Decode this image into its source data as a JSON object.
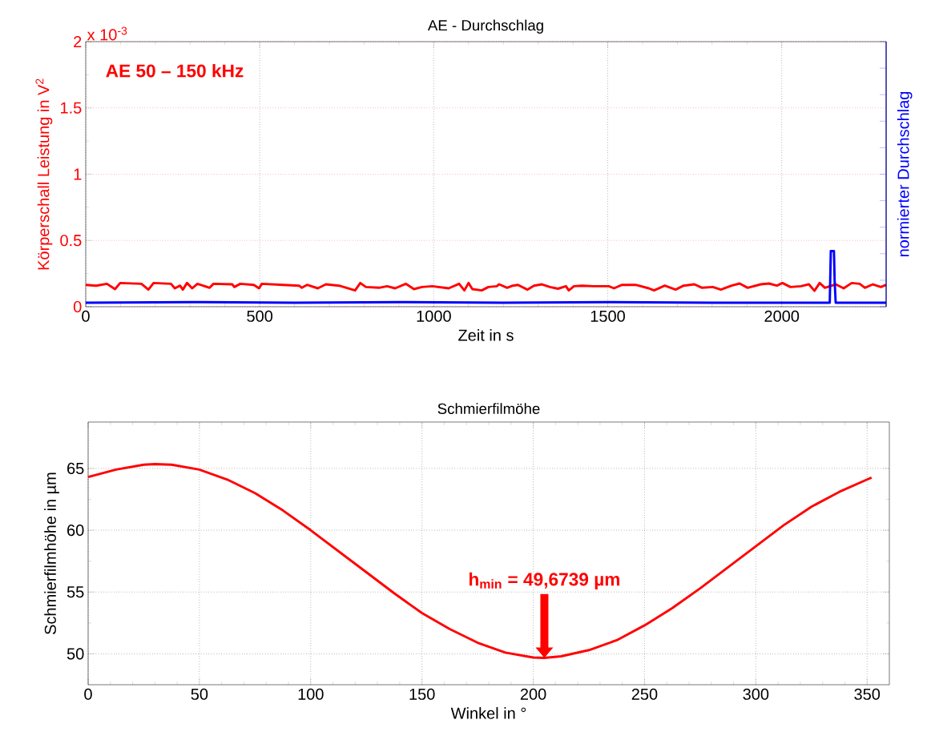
{
  "chart_data": [
    {
      "type": "line",
      "title": "AE - Durchschlag",
      "xlabel": "Zeit in s",
      "ylabel": "Körperschall Leistung in V$^{2}$",
      "y2label": "normierter Durchschlag",
      "xlim": [
        0,
        2300
      ],
      "xticks": [
        0,
        500,
        1000,
        1500,
        2000
      ],
      "ylim": [
        0,
        2
      ],
      "yticks": [
        0,
        0.5,
        1,
        1.5,
        2
      ],
      "grid": true,
      "annotations": [
        "AE 50 – 150 kHz",
        "x 10$^{-3}$"
      ],
      "series": [
        {
          "color": "#ff0000",
          "x": [
            0,
            30,
            61,
            84,
            99,
            160,
            180,
            195,
            245,
            256,
            271,
            279,
            291,
            306,
            321,
            356,
            367,
            421,
            427,
            444,
            483,
            498,
            506,
            567,
            613,
            621,
            636,
            667,
            690,
            728,
            774,
            789,
            805,
            843,
            866,
            889,
            920,
            943,
            966,
            996,
            1043,
            1073,
            1088,
            1100,
            1111,
            1138,
            1157,
            1181,
            1188,
            1211,
            1227,
            1242,
            1269,
            1288,
            1311,
            1334,
            1357,
            1380,
            1388,
            1403,
            1426,
            1457,
            1503,
            1518,
            1541,
            1580,
            1618,
            1633,
            1664,
            1695,
            1718,
            1749,
            1771,
            1802,
            1825,
            1856,
            1879,
            1902,
            1940,
            1963,
            1986,
            2002,
            2025,
            2055,
            2078,
            2094,
            2109,
            2124,
            2155,
            2178,
            2201,
            2224,
            2239,
            2262,
            2285,
            2300
          ],
          "values": [
            0.165,
            0.159,
            0.173,
            0.133,
            0.179,
            0.173,
            0.129,
            0.179,
            0.173,
            0.139,
            0.159,
            0.129,
            0.179,
            0.139,
            0.173,
            0.143,
            0.173,
            0.169,
            0.149,
            0.173,
            0.165,
            0.139,
            0.173,
            0.165,
            0.159,
            0.143,
            0.165,
            0.139,
            0.169,
            0.159,
            0.123,
            0.179,
            0.149,
            0.143,
            0.155,
            0.139,
            0.173,
            0.133,
            0.149,
            0.155,
            0.139,
            0.173,
            0.123,
            0.179,
            0.133,
            0.123,
            0.149,
            0.155,
            0.169,
            0.143,
            0.159,
            0.165,
            0.129,
            0.159,
            0.169,
            0.149,
            0.136,
            0.155,
            0.123,
            0.155,
            0.159,
            0.155,
            0.155,
            0.139,
            0.165,
            0.165,
            0.139,
            0.123,
            0.159,
            0.129,
            0.159,
            0.169,
            0.143,
            0.149,
            0.129,
            0.159,
            0.175,
            0.143,
            0.169,
            0.175,
            0.159,
            0.179,
            0.149,
            0.155,
            0.169,
            0.12,
            0.179,
            0.143,
            0.169,
            0.139,
            0.179,
            0.173,
            0.143,
            0.169,
            0.149,
            0.165
          ]
        },
        {
          "color": "#0000ff",
          "x": [
            0,
            300,
            600,
            900,
            1200,
            1500,
            1800,
            2138,
            2141,
            2150,
            2152,
            2155,
            2300
          ],
          "values": [
            0.03,
            0.035,
            0.03,
            0.035,
            0.03,
            0.035,
            0.03,
            0.03,
            0.42,
            0.42,
            0.2,
            0.03,
            0.03
          ]
        }
      ]
    },
    {
      "type": "line",
      "title": "Schmierfilmöhe",
      "xlabel": "Winkel in °",
      "ylabel": "Schmierfilmhöhe in µm",
      "xlim": [
        0,
        360
      ],
      "xticks": [
        0,
        50,
        100,
        150,
        200,
        250,
        300,
        350
      ],
      "ylim": [
        47.5,
        68.75
      ],
      "yticks": [
        50,
        55,
        60,
        65
      ],
      "grid": true,
      "annotations": [
        "h$_{min}$ = 49,6739 µm"
      ],
      "series": [
        {
          "color": "#ff0000",
          "x": [
            0,
            12.5,
            25,
            30,
            37.5,
            50,
            62.5,
            75,
            87.5,
            100,
            112.5,
            125,
            137.5,
            150,
            162.5,
            175,
            187.5,
            200,
            205,
            212.5,
            225,
            237.5,
            250,
            262.5,
            275,
            287.5,
            300,
            312.5,
            325,
            337.5,
            350,
            352
          ],
          "values": [
            64.3,
            64.9,
            65.3,
            65.35,
            65.3,
            64.9,
            64.1,
            63.0,
            61.6,
            60.0,
            58.3,
            56.6,
            54.9,
            53.3,
            52.0,
            50.9,
            50.1,
            49.7,
            49.67,
            49.8,
            50.3,
            51.1,
            52.3,
            53.7,
            55.3,
            57.0,
            58.7,
            60.4,
            61.9,
            63.1,
            64.1,
            64.25
          ]
        }
      ]
    }
  ]
}
